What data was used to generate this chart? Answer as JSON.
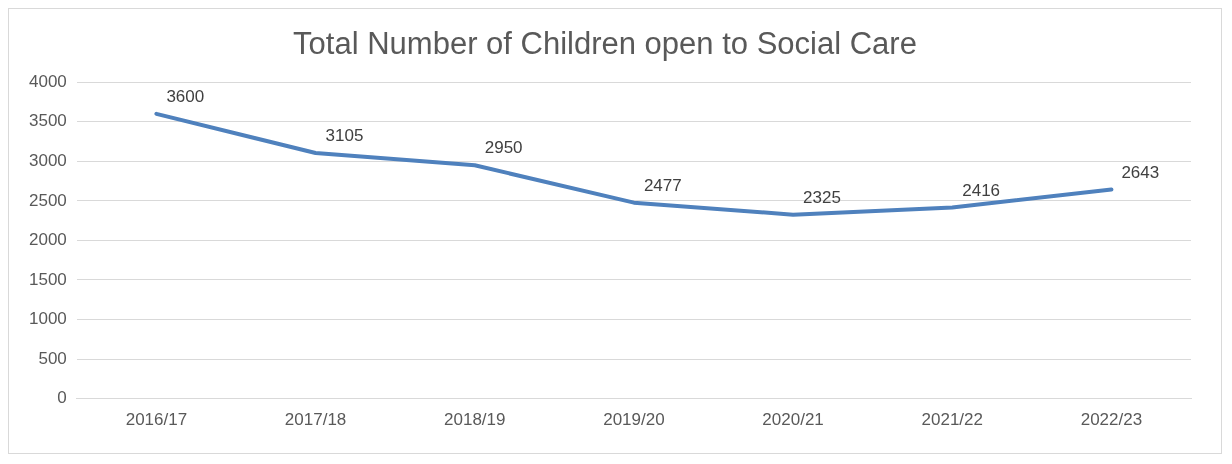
{
  "chart_data": {
    "type": "line",
    "title": "Total Number of Children open to Social Care",
    "categories": [
      "2016/17",
      "2017/18",
      "2018/19",
      "2019/20",
      "2020/21",
      "2021/22",
      "2022/23"
    ],
    "series": [
      {
        "color": "#4f81bd",
        "values": [
          3600,
          3105,
          2950,
          2477,
          2325,
          2416,
          2643
        ]
      }
    ],
    "ylim": [
      0,
      4000
    ],
    "yticks": [
      0,
      500,
      1000,
      1500,
      2000,
      2500,
      3000,
      3500,
      4000
    ],
    "grid": "y",
    "legend": false,
    "marker": "none",
    "line_style": "solid",
    "data_labels": true
  }
}
